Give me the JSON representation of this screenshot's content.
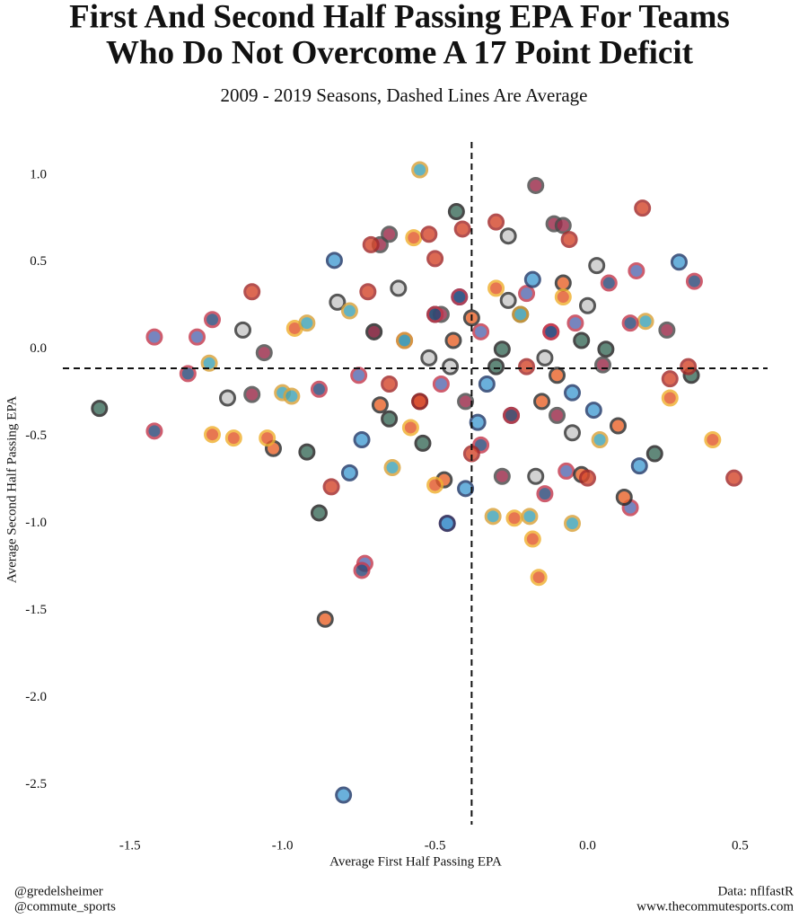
{
  "chart_data": {
    "type": "scatter",
    "title": [
      "First And Second Half Passing EPA For Teams",
      "Who Do Not Overcome A 17 Point Deficit"
    ],
    "subtitle": "2009 - 2019 Seasons, Dashed Lines Are Average",
    "x_label": "Average First Half Passing EPA",
    "y_label": "Average Second Half Passing EPA",
    "xlim": [
      -1.72,
      0.59
    ],
    "ylim": [
      -2.73,
      1.19
    ],
    "xticks": [
      -1.5,
      {
        "value": -1,
        "label": "-1.0"
      },
      -0.5,
      {
        "value": 0,
        "label": "0.0"
      },
      0.5
    ],
    "yticks": [
      {
        "value": 1,
        "label": "1.0"
      },
      0.5,
      {
        "value": 0,
        "label": "0.0"
      },
      -0.5,
      {
        "value": -1,
        "label": "-1.0"
      },
      -1.5,
      {
        "value": -2,
        "label": "-2.0"
      },
      -2.5
    ],
    "avg_x": -0.38,
    "avg_y": -0.11,
    "series": [
      {
        "color": "#3f6e5e",
        "edge": "#222222",
        "x": [
          -1.6,
          -0.92,
          -0.88,
          -0.54,
          -0.43,
          0.22,
          0.34,
          -0.65,
          -0.7,
          -0.5,
          -0.28,
          -0.02,
          0.06,
          -0.3
        ],
        "values": [
          -0.34,
          -0.59,
          -0.94,
          -0.54,
          0.79,
          -0.6,
          -0.15,
          -0.4,
          0.1,
          0.2,
          0.0,
          0.05,
          0.0,
          -0.1
        ]
      },
      {
        "color": "#5a6bb0",
        "edge": "#c43a4f",
        "x": [
          -1.42,
          -1.28,
          -0.73,
          -0.46,
          0.14,
          0.16,
          -0.07,
          -0.6,
          -0.35,
          -0.12,
          -0.75,
          -0.48,
          -0.2,
          -0.04
        ],
        "values": [
          0.07,
          0.07,
          -1.23,
          -1.0,
          -0.91,
          0.45,
          -0.7,
          0.05,
          0.1,
          0.1,
          -0.15,
          -0.2,
          0.32,
          0.15
        ]
      },
      {
        "color": "#c9c9c9",
        "edge": "#333333",
        "x": [
          -1.18,
          -1.13,
          -0.82,
          -0.26,
          -0.17,
          0.03,
          -0.05,
          -0.45,
          -0.22,
          0.0,
          -0.62,
          -0.26,
          -0.14,
          -0.52
        ],
        "values": [
          -0.28,
          0.11,
          0.27,
          0.65,
          -0.73,
          0.48,
          -0.48,
          -0.1,
          0.2,
          0.25,
          0.35,
          0.28,
          -0.05,
          -0.05
        ]
      },
      {
        "color": "#e8662e",
        "edge": "#2b2b2b",
        "x": [
          -1.03,
          -0.86,
          -0.47,
          -0.02,
          0.12,
          0.1,
          -0.08,
          -0.38,
          -0.25,
          -0.55,
          -0.1,
          -0.44,
          -0.68,
          -0.15
        ],
        "values": [
          -0.57,
          -1.55,
          -0.75,
          -0.72,
          -0.85,
          -0.44,
          0.38,
          0.18,
          -0.38,
          -0.3,
          -0.15,
          0.05,
          -0.32,
          -0.3
        ]
      },
      {
        "color": "#4a9fd4",
        "edge": "#203a6b",
        "x": [
          -0.83,
          -0.8,
          -0.78,
          -0.74,
          -0.46,
          -0.4,
          0.17,
          0.3,
          -0.42,
          -0.33,
          -0.18,
          -0.05,
          0.02,
          -0.36
        ],
        "values": [
          0.51,
          -2.56,
          -0.71,
          -0.52,
          -1.0,
          -0.8,
          -0.67,
          0.5,
          0.3,
          -0.2,
          0.4,
          -0.25,
          -0.35,
          -0.42
        ]
      },
      {
        "color": "#e25a2c",
        "edge": "#f0b030",
        "x": [
          -1.23,
          -1.16,
          -1.05,
          -0.96,
          -0.57,
          -0.24,
          -0.18,
          -0.16,
          0.41,
          0.27,
          -0.5,
          -0.3,
          -0.08,
          -0.58
        ],
        "values": [
          -0.49,
          -0.51,
          -0.51,
          0.12,
          0.64,
          -0.97,
          -1.09,
          -1.31,
          -0.52,
          -0.28,
          -0.78,
          0.35,
          0.3,
          -0.45
        ]
      },
      {
        "color": "#9a2b4a",
        "edge": "#4a4a4a",
        "x": [
          -1.1,
          -1.06,
          -0.68,
          -0.65,
          -0.17,
          -0.11,
          -0.08,
          0.26,
          0.05,
          -0.4,
          -0.28,
          -0.1,
          -0.7,
          -0.48
        ],
        "values": [
          -0.26,
          -0.02,
          0.6,
          0.66,
          0.94,
          0.72,
          0.71,
          0.11,
          -0.09,
          -0.3,
          -0.73,
          -0.38,
          0.1,
          0.2
        ]
      },
      {
        "color": "#41a3b5",
        "edge": "#d8a23a",
        "x": [
          -1.24,
          -1.0,
          -0.97,
          -0.92,
          -0.64,
          -0.55,
          -0.31,
          -0.19,
          -0.05,
          0.04,
          0.19,
          -0.6,
          -0.22,
          -0.78
        ],
        "values": [
          -0.08,
          -0.25,
          -0.27,
          0.15,
          -0.68,
          1.03,
          -0.96,
          -0.96,
          -1.0,
          -0.52,
          0.16,
          0.05,
          0.2,
          0.22
        ]
      },
      {
        "color": "#2e4a7a",
        "edge": "#c43a4f",
        "x": [
          -1.42,
          -1.31,
          -1.23,
          -0.88,
          -0.74,
          -0.14,
          0.07,
          0.14,
          0.35,
          -0.35,
          -0.5,
          -0.25,
          -0.12,
          -0.42
        ],
        "values": [
          -0.47,
          -0.14,
          0.17,
          -0.23,
          -1.27,
          -0.83,
          0.38,
          0.15,
          0.39,
          -0.55,
          0.2,
          -0.38,
          0.1,
          0.3
        ]
      },
      {
        "color": "#d5492e",
        "edge": "#a32a2a",
        "x": [
          -1.1,
          -0.84,
          -0.72,
          -0.71,
          -0.52,
          -0.5,
          -0.41,
          -0.38,
          -0.3,
          -0.06,
          0.0,
          0.18,
          0.27,
          0.33,
          0.48,
          -0.65,
          -0.55,
          -0.2
        ],
        "values": [
          0.33,
          -0.79,
          0.33,
          0.6,
          0.66,
          0.52,
          0.69,
          -0.6,
          0.73,
          0.63,
          -0.74,
          0.81,
          -0.17,
          -0.1,
          -0.74,
          -0.2,
          -0.3,
          -0.1
        ]
      }
    ],
    "credits_left": [
      "@gredelsheimer",
      "@commute_sports"
    ],
    "credits_right": [
      "Data: nflfastR",
      "www.thecommutesports.com"
    ]
  }
}
